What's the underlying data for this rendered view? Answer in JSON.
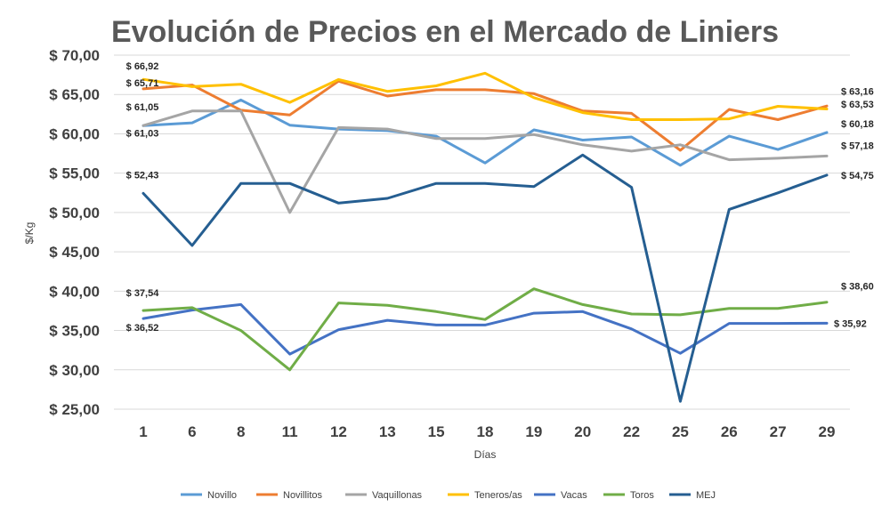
{
  "chart_data": {
    "type": "line",
    "title": "Evolución de Precios en el Mercado de Liniers",
    "xlabel": "Días",
    "ylabel": "$/Kg",
    "ylim": [
      25,
      70
    ],
    "y_tick_labels": [
      "$ 25,00",
      "$ 30,00",
      "$ 35,00",
      "$ 40,00",
      "$ 45,00",
      "$ 50,00",
      "$ 55,00",
      "$ 60,00",
      "$ 65,00",
      "$ 70,00"
    ],
    "grid": true,
    "legend_position": "bottom",
    "categories": [
      "1",
      "6",
      "8",
      "11",
      "12",
      "13",
      "15",
      "18",
      "19",
      "20",
      "22",
      "25",
      "26",
      "27",
      "29"
    ],
    "series": [
      {
        "name": "Novillo",
        "color": "#5b9bd5",
        "values": [
          61.03,
          61.4,
          64.3,
          61.1,
          60.6,
          60.4,
          59.7,
          56.3,
          60.5,
          59.2,
          59.6,
          56.0,
          59.7,
          58.0,
          60.18
        ]
      },
      {
        "name": "Novillitos",
        "color": "#ed7d31",
        "values": [
          65.71,
          66.2,
          63.0,
          62.4,
          66.7,
          64.8,
          65.6,
          65.6,
          65.1,
          62.9,
          62.6,
          57.9,
          63.1,
          61.8,
          63.53
        ]
      },
      {
        "name": "Vaquillonas",
        "color": "#a5a5a5",
        "values": [
          61.05,
          62.9,
          62.9,
          50.0,
          60.8,
          60.6,
          59.4,
          59.4,
          59.9,
          58.6,
          57.8,
          58.6,
          56.7,
          56.9,
          57.18
        ]
      },
      {
        "name": "Teneros/as",
        "color": "#ffc000",
        "values": [
          66.92,
          66.0,
          66.3,
          64.0,
          66.9,
          65.4,
          66.1,
          67.7,
          64.6,
          62.7,
          61.8,
          61.8,
          61.9,
          63.5,
          63.16
        ]
      },
      {
        "name": "Vacas",
        "color": "#4472c4",
        "values": [
          36.52,
          37.6,
          38.3,
          32.0,
          35.1,
          36.3,
          35.7,
          35.7,
          37.2,
          37.4,
          35.2,
          32.1,
          35.9,
          35.9,
          35.92
        ]
      },
      {
        "name": "Toros",
        "color": "#70ad47",
        "values": [
          37.54,
          37.9,
          35.0,
          30.0,
          38.5,
          38.2,
          37.4,
          36.4,
          40.3,
          38.3,
          37.1,
          37.0,
          37.8,
          37.8,
          38.6
        ]
      },
      {
        "name": "MEJ",
        "color": "#255e91",
        "values": [
          52.43,
          45.8,
          53.7,
          53.7,
          51.2,
          51.8,
          53.7,
          53.7,
          53.3,
          57.3,
          53.2,
          26.0,
          50.4,
          52.5,
          54.75
        ]
      }
    ],
    "data_labels": [
      {
        "series": "Teneros/as",
        "index": 0,
        "text": "$ 66,92",
        "side": "left"
      },
      {
        "series": "Novillitos",
        "index": 0,
        "text": "$ 65,71",
        "side": "left"
      },
      {
        "series": "Vaquillonas",
        "index": 0,
        "text": "$ 61,05",
        "side": "left"
      },
      {
        "series": "Novillo",
        "index": 0,
        "text": "$ 61,03",
        "side": "left"
      },
      {
        "series": "MEJ",
        "index": 0,
        "text": "$ 52,43",
        "side": "left"
      },
      {
        "series": "Toros",
        "index": 0,
        "text": "$ 37,54",
        "side": "left"
      },
      {
        "series": "Vacas",
        "index": 0,
        "text": "$ 36,52",
        "side": "left"
      },
      {
        "series": "Teneros/as",
        "index": 14,
        "text": "$ 63,16",
        "side": "right"
      },
      {
        "series": "Novillitos",
        "index": 14,
        "text": "$ 63,53",
        "side": "right"
      },
      {
        "series": "Novillo",
        "index": 14,
        "text": "$ 60,18",
        "side": "right"
      },
      {
        "series": "Vaquillonas",
        "index": 14,
        "text": "$ 57,18",
        "side": "right"
      },
      {
        "series": "MEJ",
        "index": 14,
        "text": "$ 54,75",
        "side": "right"
      },
      {
        "series": "Toros",
        "index": 14,
        "text": "$ 38,60",
        "side": "right"
      },
      {
        "series": "Vacas",
        "index": 14,
        "text": "$ 35,92",
        "side": "right"
      }
    ]
  }
}
